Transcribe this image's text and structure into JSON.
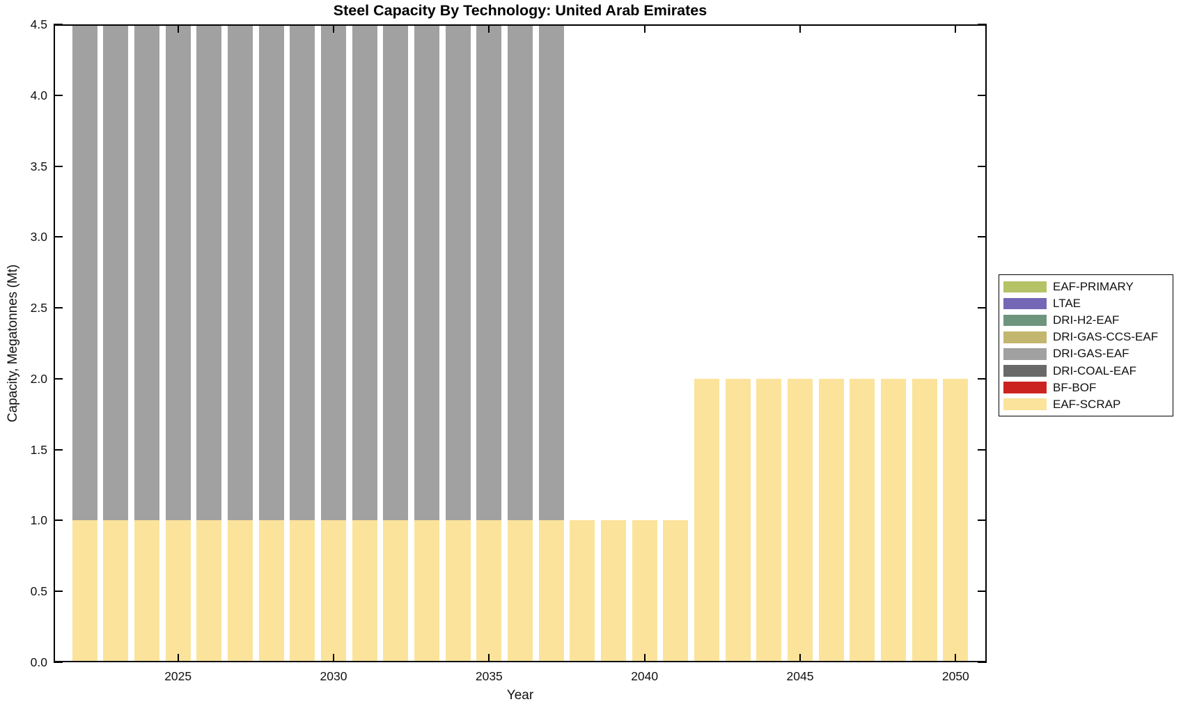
{
  "header": {
    "title": "Steel Capacity By Technology: United Arab Emirates"
  },
  "chart_data": {
    "type": "bar",
    "stacked": true,
    "title": "Steel Capacity By Technology: United Arab Emirates",
    "xlabel": "Year",
    "ylabel": "Capacity, Megatonnes (Mt)",
    "xlim": [
      2021,
      2051
    ],
    "ylim": [
      0,
      4.5
    ],
    "bar_width": 0.8,
    "grid": false,
    "legend_position": "right-outside",
    "x": [
      2022,
      2023,
      2024,
      2025,
      2026,
      2027,
      2028,
      2029,
      2030,
      2031,
      2032,
      2033,
      2034,
      2035,
      2036,
      2037,
      2038,
      2039,
      2040,
      2041,
      2042,
      2043,
      2044,
      2045,
      2046,
      2047,
      2048,
      2049,
      2050
    ],
    "xticks": [
      2025,
      2030,
      2035,
      2040,
      2045,
      2050
    ],
    "xtick_labels": [
      "2025",
      "2030",
      "2035",
      "2040",
      "2045",
      "2050"
    ],
    "yticks": [
      0,
      0.5,
      1,
      1.5,
      2,
      2.5,
      3,
      3.5,
      4,
      4.5
    ],
    "ytick_labels": [
      "0.0",
      "0.5",
      "1.0",
      "1.5",
      "2.0",
      "2.5",
      "3.0",
      "3.5",
      "4.0",
      "4.5"
    ],
    "series": [
      {
        "name": "EAF-SCRAP",
        "color": "#fbe39b",
        "values": [
          1,
          1,
          1,
          1,
          1,
          1,
          1,
          1,
          1,
          1,
          1,
          1,
          1,
          1,
          1,
          1,
          1,
          1,
          1,
          1,
          2,
          2,
          2,
          2,
          2,
          2,
          2,
          2,
          2
        ]
      },
      {
        "name": "DRI-GAS-EAF",
        "color": "#a1a1a1",
        "values": [
          3.5,
          3.5,
          3.5,
          3.5,
          3.5,
          3.5,
          3.5,
          3.5,
          3.5,
          3.5,
          3.5,
          3.5,
          3.5,
          3.5,
          3.5,
          3.5,
          0,
          0,
          0,
          0,
          0,
          0,
          0,
          0,
          0,
          0,
          0,
          0,
          0
        ]
      }
    ]
  },
  "legend": {
    "items": [
      {
        "label": "EAF-PRIMARY",
        "color": "#b6c266"
      },
      {
        "label": "LTAE",
        "color": "#7468b6"
      },
      {
        "label": "DRI-H2-EAF",
        "color": "#6f947d"
      },
      {
        "label": "DRI-GAS-CCS-EAF",
        "color": "#c3b66e"
      },
      {
        "label": "DRI-GAS-EAF",
        "color": "#a1a1a1"
      },
      {
        "label": "DRI-COAL-EAF",
        "color": "#696969"
      },
      {
        "label": "BF-BOF",
        "color": "#cb2420"
      },
      {
        "label": "EAF-SCRAP",
        "color": "#fbe39b"
      }
    ]
  }
}
